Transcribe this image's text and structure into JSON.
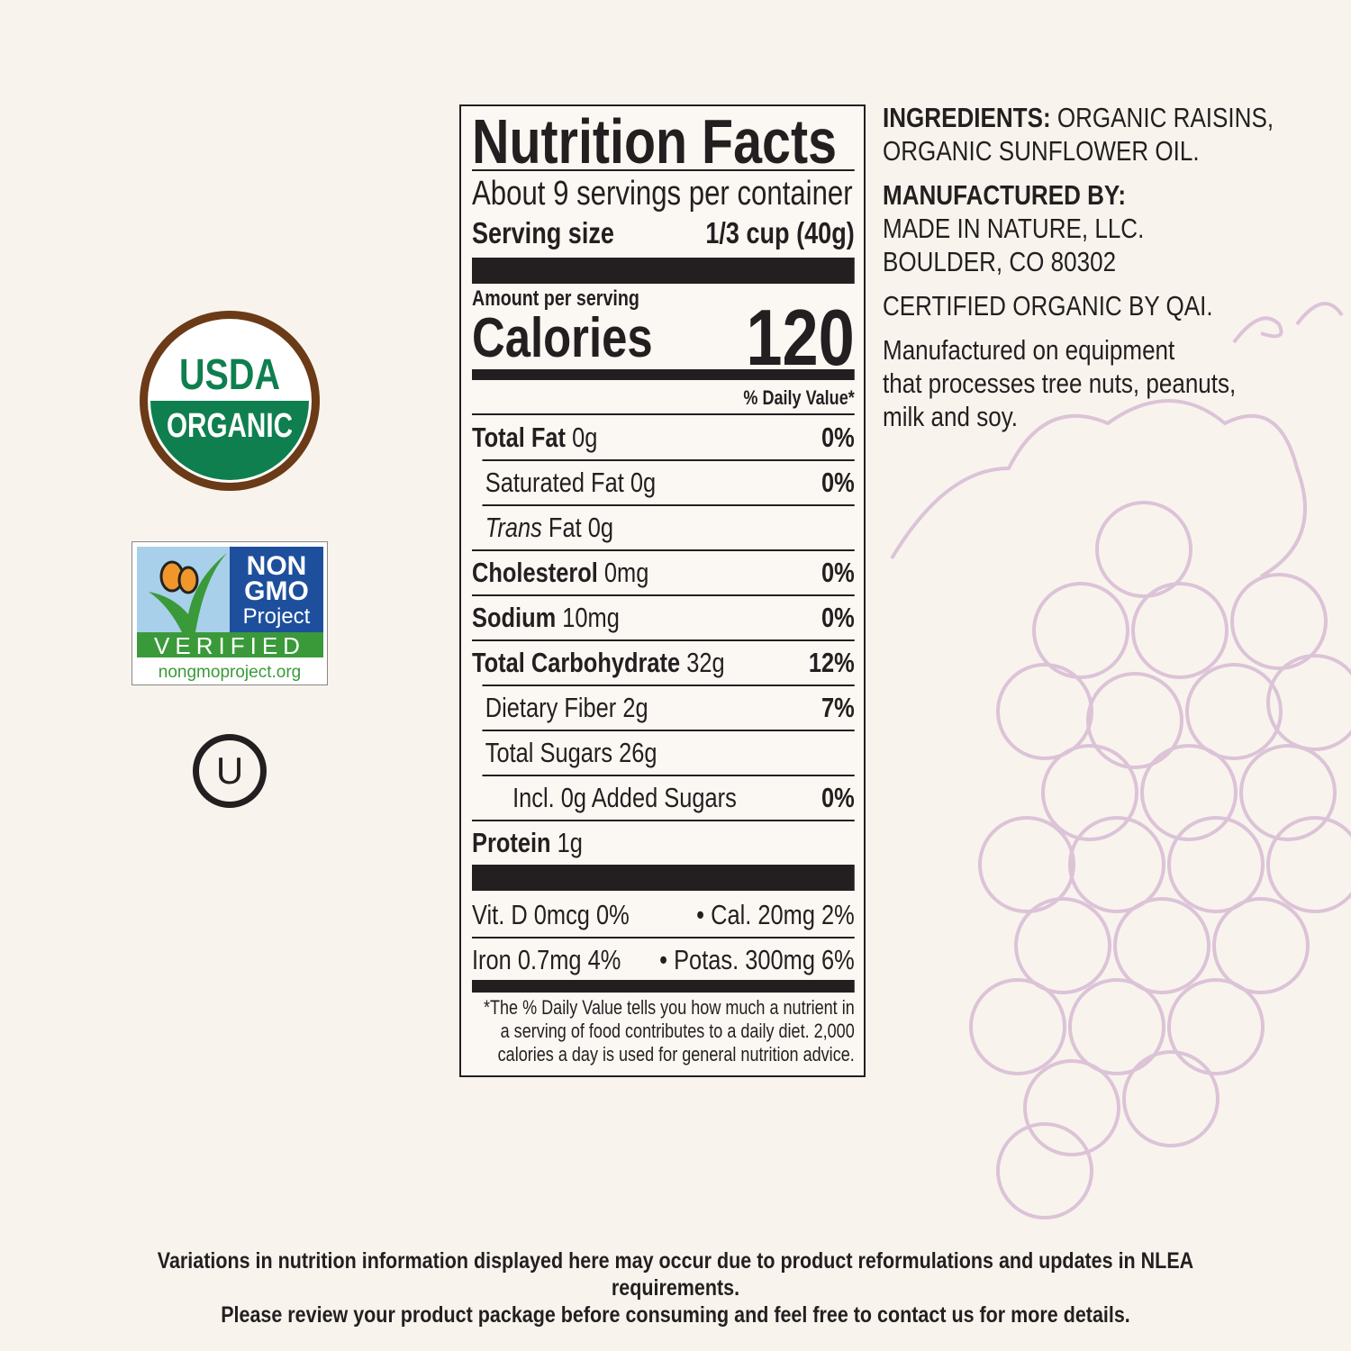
{
  "nutrition_facts": {
    "title": "Nutrition Facts",
    "servings_per_container": "About 9 servings per container",
    "serving_size_label": "Serving size",
    "serving_size_value": "1/3 cup (40g)",
    "amount_per_serving": "Amount per serving",
    "calories_label": "Calories",
    "calories_value": "120",
    "daily_value_header": "% Daily Value*",
    "nutrients": [
      {
        "name": "Total Fat",
        "amount": "0g",
        "dv": "0%"
      },
      {
        "name": "Saturated Fat 0g",
        "amount": "",
        "dv": "0%"
      },
      {
        "name": "Trans",
        "amount": "Fat 0g",
        "dv": ""
      },
      {
        "name": "Cholesterol",
        "amount": "0mg",
        "dv": "0%"
      },
      {
        "name": "Sodium",
        "amount": "10mg",
        "dv": "0%"
      },
      {
        "name": "Total Carbohydrate",
        "amount": "32g",
        "dv": "12%"
      },
      {
        "name": "Dietary Fiber 2g",
        "amount": "",
        "dv": "7%"
      },
      {
        "name": "Total Sugars 26g",
        "amount": "",
        "dv": ""
      },
      {
        "name": "Incl. 0g Added Sugars",
        "amount": "",
        "dv": "0%"
      },
      {
        "name": "Protein",
        "amount": "1g",
        "dv": ""
      }
    ],
    "vitamins": [
      {
        "left": "Vit. D 0mcg 0%",
        "right": "• Cal. 20mg  2%"
      },
      {
        "left": "Iron 0.7mg 4%",
        "right": "• Potas. 300mg  6%"
      }
    ],
    "footnote": [
      "*The % Daily Value tells you how much a nutrient in",
      "a serving of food contributes to a daily diet. 2,000",
      "calories a day is used for general nutrition advice."
    ]
  },
  "info": {
    "ingredients_label": "INGREDIENTS:",
    "ingredients_line1": " ORGANIC RAISINS,",
    "ingredients_line2": "ORGANIC SUNFLOWER OIL.",
    "manufactured_label": "MANUFACTURED BY:",
    "manufacturer_line1": "MADE IN NATURE, LLC.",
    "manufacturer_line2": "BOULDER, CO 80302",
    "certified": "CERTIFIED ORGANIC BY QAI.",
    "allergen_line1": "Manufactured on equipment",
    "allergen_line2": "that processes tree nuts, peanuts,",
    "allergen_line3": "milk and soy."
  },
  "logos": {
    "usda_top": "USDA",
    "usda_bottom": "ORGANIC",
    "nongmo_non": "NON",
    "nongmo_gmo": "GMO",
    "nongmo_project": "Project",
    "nongmo_verified": "VERIFIED",
    "nongmo_url": "nongmoproject.org",
    "kosher": "U"
  },
  "footer": {
    "line1": "Variations in nutrition information displayed here may occur due to product reformulations and updates in NLEA requirements.",
    "line2": "Please review your product  package before consuming and feel free to contact us for more details."
  },
  "colors": {
    "usda_green": "#0f7f4f",
    "usda_brown": "#6b3a17",
    "nongmo_blue": "#1d4f9c",
    "nongmo_green": "#3a9a3a",
    "grape": "#dcc3d8"
  }
}
